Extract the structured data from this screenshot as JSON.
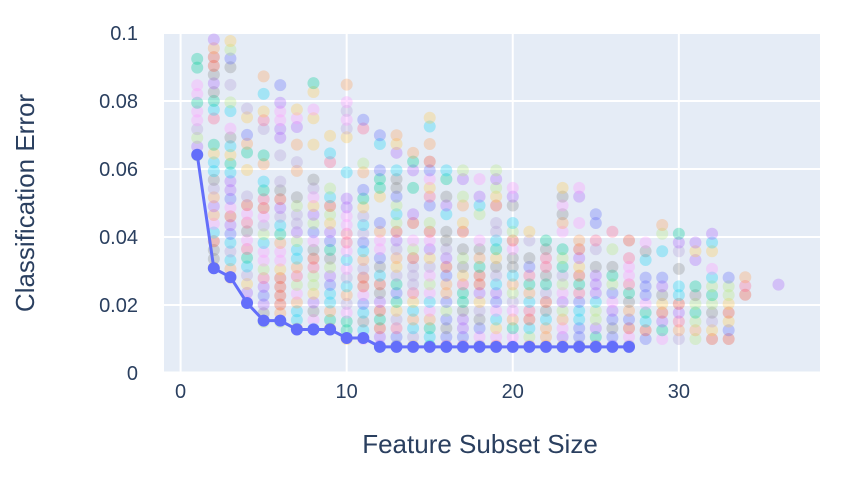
{
  "chart_data": {
    "type": "scatter",
    "title": "",
    "xlabel": "Feature Subset Size",
    "ylabel": "Classification Error",
    "xlim": [
      -1,
      38.5
    ],
    "ylim": [
      0,
      0.1
    ],
    "x_ticks": [
      0,
      10,
      20,
      30
    ],
    "y_ticks": [
      0,
      0.02,
      0.04,
      0.06,
      0.08,
      0.1
    ],
    "y_tick_labels": [
      "0",
      "0.02",
      "0.04",
      "0.06",
      "0.08",
      "0.1"
    ],
    "grid": true,
    "background_color": "#e5ecf6",
    "best_line_color": "#636efa",
    "best_series": {
      "x": [
        1,
        2,
        3,
        4,
        5,
        6,
        7,
        8,
        9,
        10,
        11,
        12,
        13,
        14,
        15,
        16,
        17,
        18,
        19,
        20,
        21,
        22,
        23,
        24,
        25,
        26,
        27
      ],
      "y": [
        0.0642,
        0.0308,
        0.0282,
        0.0206,
        0.0154,
        0.0154,
        0.0128,
        0.0128,
        0.0128,
        0.0103,
        0.0103,
        0.0077,
        0.0077,
        0.0077,
        0.0077,
        0.0077,
        0.0077,
        0.0077,
        0.0077,
        0.0077,
        0.0077,
        0.0077,
        0.0077,
        0.0077,
        0.0077,
        0.0077,
        0.0077
      ]
    },
    "candidate_ranges": {
      "x": [
        1,
        2,
        3,
        4,
        5,
        6,
        7,
        8,
        9,
        10,
        11,
        12,
        13,
        14,
        15,
        16,
        17,
        18,
        19,
        20,
        21,
        22,
        23,
        24,
        25,
        26,
        27,
        28,
        29,
        30,
        31,
        32,
        33,
        34,
        36
      ],
      "min_error": [
        0.064,
        0.031,
        0.028,
        0.021,
        0.015,
        0.015,
        0.013,
        0.013,
        0.013,
        0.01,
        0.01,
        0.008,
        0.008,
        0.008,
        0.008,
        0.008,
        0.008,
        0.008,
        0.008,
        0.008,
        0.008,
        0.008,
        0.008,
        0.008,
        0.008,
        0.008,
        0.008,
        0.01,
        0.01,
        0.01,
        0.01,
        0.01,
        0.01,
        0.023,
        0.026
      ],
      "max_error": [
        0.095,
        0.1,
        0.1,
        0.08,
        0.09,
        0.087,
        0.08,
        0.09,
        0.072,
        0.087,
        0.075,
        0.075,
        0.072,
        0.065,
        0.077,
        0.062,
        0.06,
        0.06,
        0.06,
        0.06,
        0.046,
        0.048,
        0.056,
        0.056,
        0.049,
        0.044,
        0.041,
        0.044,
        0.044,
        0.041,
        0.041,
        0.044,
        0.038,
        0.033,
        0.026
      ]
    },
    "candidate_colors": [
      "#636efa",
      "#ef553b",
      "#00cc96",
      "#ab63fa",
      "#ffa15a",
      "#19d3f3",
      "#ff6692",
      "#b6e880",
      "#ff97ff",
      "#fecb52",
      "#8c8c8c",
      "#b4a0d6"
    ]
  }
}
